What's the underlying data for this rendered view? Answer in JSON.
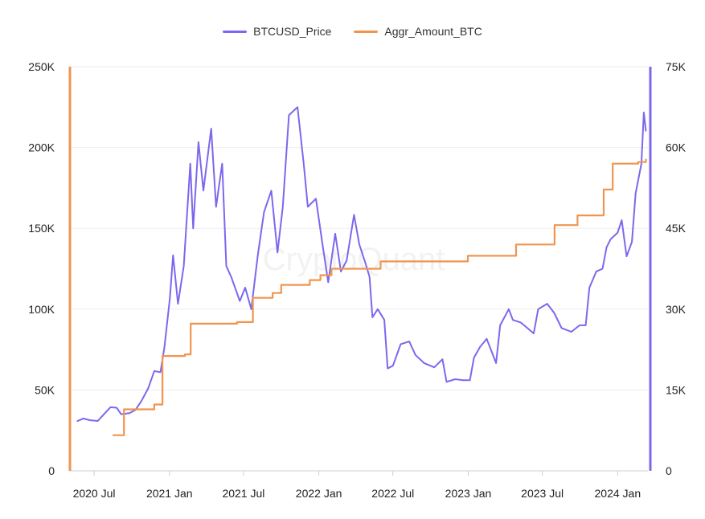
{
  "watermark": "CryptoQuant",
  "chart_data": {
    "type": "line",
    "legend_position": "top-center",
    "grid": true,
    "x_ticks": [
      "2020 Jul",
      "2021 Jan",
      "2021 Jul",
      "2022 Jan",
      "2022 Jul",
      "2023 Jan",
      "2023 Jul",
      "2024 Jan"
    ],
    "x_range": [
      "2020-05-01",
      "2024-03-15"
    ],
    "y_left": {
      "ylim": [
        0,
        250000
      ],
      "ticks": [
        "0",
        "50K",
        "100K",
        "150K",
        "200K",
        "250K"
      ],
      "color": "#f0954f"
    },
    "y_right": {
      "ylim": [
        0,
        75000
      ],
      "ticks": [
        "0",
        "15K",
        "30K",
        "45K",
        "60K",
        "75K"
      ],
      "color": "#7b68ee"
    },
    "series": [
      {
        "name": "BTCUSD_Price",
        "axis": "right",
        "color": "#7b68ee",
        "points": [
          [
            "2020-05-20",
            9200
          ],
          [
            "2020-06-05",
            9700
          ],
          [
            "2020-06-20",
            9400
          ],
          [
            "2020-07-10",
            9250
          ],
          [
            "2020-07-25",
            10500
          ],
          [
            "2020-08-10",
            11800
          ],
          [
            "2020-08-25",
            11700
          ],
          [
            "2020-09-05",
            10500
          ],
          [
            "2020-09-25",
            10700
          ],
          [
            "2020-10-10",
            11300
          ],
          [
            "2020-10-25",
            13000
          ],
          [
            "2020-11-10",
            15300
          ],
          [
            "2020-11-25",
            18500
          ],
          [
            "2020-12-10",
            18300
          ],
          [
            "2020-12-20",
            23000
          ],
          [
            "2021-01-02",
            32000
          ],
          [
            "2021-01-10",
            40000
          ],
          [
            "2021-01-22",
            31000
          ],
          [
            "2021-02-05",
            38000
          ],
          [
            "2021-02-21",
            57000
          ],
          [
            "2021-02-28",
            45000
          ],
          [
            "2021-03-13",
            61000
          ],
          [
            "2021-03-25",
            52000
          ],
          [
            "2021-04-13",
            63500
          ],
          [
            "2021-04-25",
            49000
          ],
          [
            "2021-05-10",
            57000
          ],
          [
            "2021-05-20",
            38000
          ],
          [
            "2021-06-01",
            36000
          ],
          [
            "2021-06-22",
            31500
          ],
          [
            "2021-07-05",
            34000
          ],
          [
            "2021-07-20",
            30000
          ],
          [
            "2021-08-05",
            40000
          ],
          [
            "2021-08-20",
            48000
          ],
          [
            "2021-09-07",
            52000
          ],
          [
            "2021-09-22",
            40500
          ],
          [
            "2021-10-05",
            49000
          ],
          [
            "2021-10-20",
            66000
          ],
          [
            "2021-11-10",
            67500
          ],
          [
            "2021-11-25",
            57000
          ],
          [
            "2021-12-05",
            49000
          ],
          [
            "2021-12-25",
            50500
          ],
          [
            "2022-01-10",
            42000
          ],
          [
            "2022-01-24",
            35000
          ],
          [
            "2022-02-10",
            44000
          ],
          [
            "2022-02-24",
            37000
          ],
          [
            "2022-03-10",
            39000
          ],
          [
            "2022-03-28",
            47500
          ],
          [
            "2022-04-10",
            42000
          ],
          [
            "2022-04-25",
            38500
          ],
          [
            "2022-05-05",
            36000
          ],
          [
            "2022-05-12",
            28500
          ],
          [
            "2022-05-25",
            30000
          ],
          [
            "2022-06-10",
            28000
          ],
          [
            "2022-06-18",
            19000
          ],
          [
            "2022-07-01",
            19500
          ],
          [
            "2022-07-20",
            23500
          ],
          [
            "2022-08-10",
            24000
          ],
          [
            "2022-08-25",
            21500
          ],
          [
            "2022-09-15",
            20000
          ],
          [
            "2022-10-10",
            19200
          ],
          [
            "2022-10-30",
            20700
          ],
          [
            "2022-11-09",
            16500
          ],
          [
            "2022-11-30",
            17000
          ],
          [
            "2022-12-20",
            16800
          ],
          [
            "2023-01-05",
            16800
          ],
          [
            "2023-01-15",
            21000
          ],
          [
            "2023-01-30",
            23000
          ],
          [
            "2023-02-15",
            24500
          ],
          [
            "2023-03-10",
            20000
          ],
          [
            "2023-03-20",
            27000
          ],
          [
            "2023-04-10",
            30000
          ],
          [
            "2023-04-20",
            28000
          ],
          [
            "2023-05-10",
            27500
          ],
          [
            "2023-06-10",
            25500
          ],
          [
            "2023-06-21",
            30000
          ],
          [
            "2023-07-13",
            31000
          ],
          [
            "2023-07-30",
            29300
          ],
          [
            "2023-08-17",
            26500
          ],
          [
            "2023-09-10",
            25800
          ],
          [
            "2023-09-30",
            27000
          ],
          [
            "2023-10-15",
            27000
          ],
          [
            "2023-10-24",
            34000
          ],
          [
            "2023-11-10",
            37000
          ],
          [
            "2023-11-25",
            37500
          ],
          [
            "2023-12-05",
            41500
          ],
          [
            "2023-12-15",
            43000
          ],
          [
            "2024-01-01",
            44200
          ],
          [
            "2024-01-11",
            46500
          ],
          [
            "2024-01-23",
            39800
          ],
          [
            "2024-02-05",
            42500
          ],
          [
            "2024-02-14",
            51500
          ],
          [
            "2024-02-28",
            57000
          ],
          [
            "2024-03-05",
            66500
          ],
          [
            "2024-03-10",
            63000
          ]
        ]
      },
      {
        "name": "Aggr_Amount_BTC",
        "axis": "left",
        "color": "#f0954f",
        "points": [
          [
            "2020-08-15",
            22000
          ],
          [
            "2020-09-12",
            22000
          ],
          [
            "2020-09-12",
            38000
          ],
          [
            "2020-11-25",
            38000
          ],
          [
            "2020-11-25",
            41000
          ],
          [
            "2020-12-15",
            41000
          ],
          [
            "2020-12-15",
            71000
          ],
          [
            "2021-02-08",
            71000
          ],
          [
            "2021-02-08",
            72000
          ],
          [
            "2021-02-22",
            72000
          ],
          [
            "2021-02-22",
            91000
          ],
          [
            "2021-06-15",
            91000
          ],
          [
            "2021-06-15",
            92000
          ],
          [
            "2021-07-24",
            92000
          ],
          [
            "2021-07-24",
            107000
          ],
          [
            "2021-09-10",
            107000
          ],
          [
            "2021-09-10",
            110000
          ],
          [
            "2021-10-01",
            110000
          ],
          [
            "2021-10-01",
            115000
          ],
          [
            "2021-12-10",
            115000
          ],
          [
            "2021-12-10",
            118000
          ],
          [
            "2022-01-05",
            118000
          ],
          [
            "2022-01-05",
            121000
          ],
          [
            "2022-02-01",
            121000
          ],
          [
            "2022-02-01",
            125000
          ],
          [
            "2022-06-01",
            125000
          ],
          [
            "2022-06-01",
            129500
          ],
          [
            "2022-12-31",
            129500
          ],
          [
            "2022-12-31",
            133000
          ],
          [
            "2023-04-28",
            133000
          ],
          [
            "2023-04-28",
            140000
          ],
          [
            "2023-07-31",
            140000
          ],
          [
            "2023-07-31",
            152000
          ],
          [
            "2023-09-25",
            152000
          ],
          [
            "2023-09-25",
            158000
          ],
          [
            "2023-11-28",
            158000
          ],
          [
            "2023-11-28",
            174000
          ],
          [
            "2023-12-20",
            174000
          ],
          [
            "2023-12-20",
            190000
          ],
          [
            "2024-02-20",
            190000
          ],
          [
            "2024-02-20",
            191000
          ],
          [
            "2024-03-10",
            191000
          ],
          [
            "2024-03-10",
            193000
          ]
        ]
      }
    ]
  }
}
